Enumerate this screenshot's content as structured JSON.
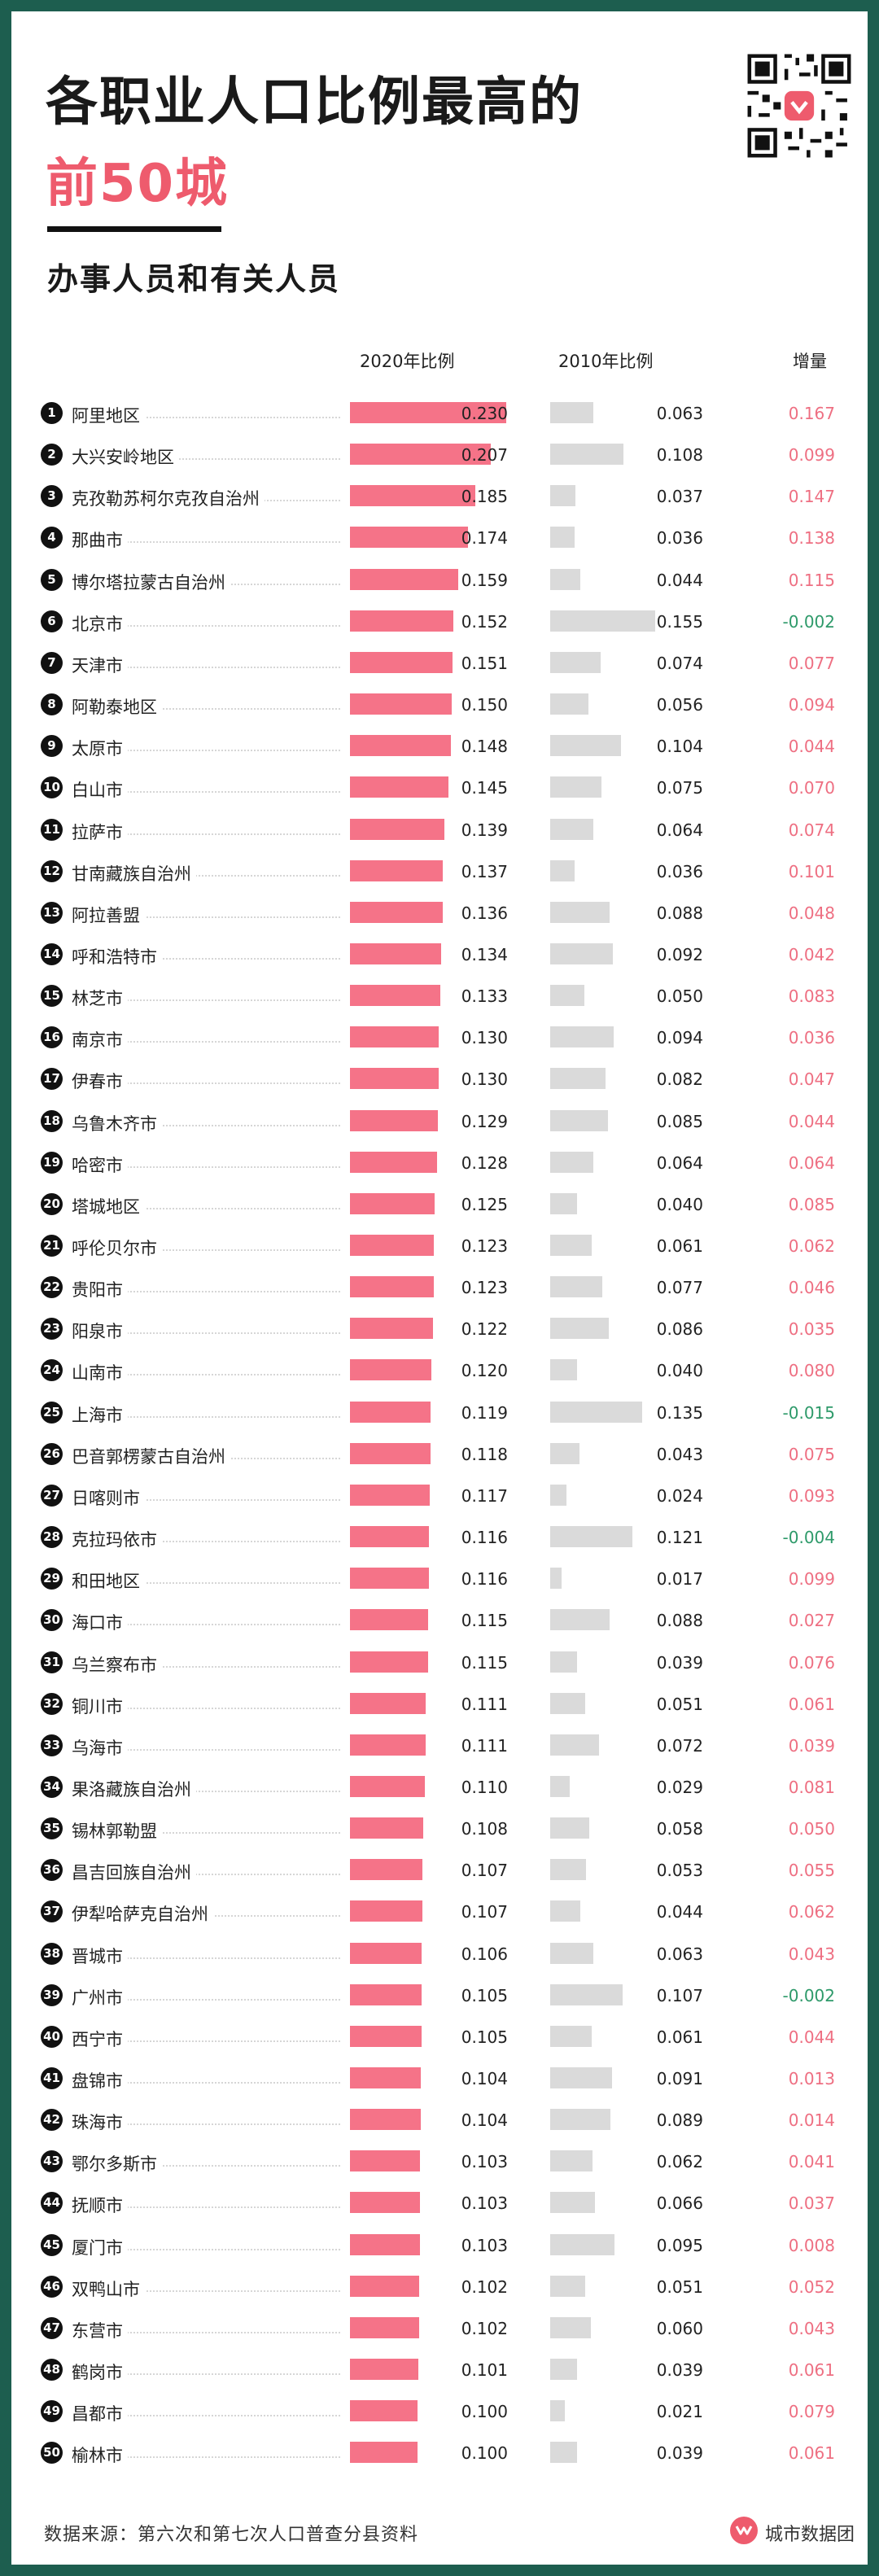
{
  "header": {
    "title_line1": "各职业人口比例最高的",
    "title_line2": "前50城",
    "subtitle": "办事人员和有关人员"
  },
  "columns": {
    "c2020": "2020年比例",
    "c2010": "2010年比例",
    "inc": "增量"
  },
  "footer": {
    "source": "数据来源：第六次和第七次人口普查分县资料",
    "brand": "城市数据团"
  },
  "colors": {
    "bar2020": "#f57388",
    "bar2010": "#dadada",
    "positive": "#ee6f82",
    "negative": "#2e9a6a",
    "accent": "#ee5b6d"
  },
  "icons": {
    "qr": "qr-code-icon",
    "brand": "brand-logo-icon"
  },
  "chart_data": {
    "type": "bar",
    "title": "各职业人口比例最高的 前50城",
    "subtitle": "办事人员和有关人员",
    "series": [
      {
        "name": "2020年比例",
        "values": [
          0.23,
          0.207,
          0.185,
          0.174,
          0.159,
          0.152,
          0.151,
          0.15,
          0.148,
          0.145,
          0.139,
          0.137,
          0.136,
          0.134,
          0.133,
          0.13,
          0.13,
          0.129,
          0.128,
          0.125,
          0.123,
          0.123,
          0.122,
          0.12,
          0.119,
          0.118,
          0.117,
          0.116,
          0.116,
          0.115,
          0.115,
          0.111,
          0.111,
          0.11,
          0.108,
          0.107,
          0.107,
          0.106,
          0.105,
          0.105,
          0.104,
          0.104,
          0.103,
          0.103,
          0.103,
          0.102,
          0.102,
          0.101,
          0.1,
          0.1
        ]
      },
      {
        "name": "2010年比例",
        "values": [
          0.063,
          0.108,
          0.037,
          0.036,
          0.044,
          0.155,
          0.074,
          0.056,
          0.104,
          0.075,
          0.064,
          0.036,
          0.088,
          0.092,
          0.05,
          0.094,
          0.082,
          0.085,
          0.064,
          0.04,
          0.061,
          0.077,
          0.086,
          0.04,
          0.135,
          0.043,
          0.024,
          0.121,
          0.017,
          0.088,
          0.039,
          0.051,
          0.072,
          0.029,
          0.058,
          0.053,
          0.044,
          0.063,
          0.107,
          0.061,
          0.091,
          0.089,
          0.062,
          0.066,
          0.095,
          0.051,
          0.06,
          0.039,
          0.021,
          0.039
        ]
      }
    ],
    "ranks": [
      "1",
      "2",
      "3",
      "4",
      "5",
      "6",
      "7",
      "8",
      "9",
      "10",
      "11",
      "12",
      "13",
      "14",
      "15",
      "16",
      "17",
      "18",
      "19",
      "20",
      "21",
      "22",
      "23",
      "24",
      "25",
      "26",
      "27",
      "28",
      "29",
      "30",
      "31",
      "32",
      "33",
      "34",
      "35",
      "36",
      "37",
      "38",
      "39",
      "40",
      "41",
      "42",
      "43",
      "44",
      "45",
      "46",
      "47",
      "48",
      "49",
      "50"
    ],
    "categories": [
      "阿里地区",
      "大兴安岭地区",
      "克孜勒苏柯尔克孜自治州",
      "那曲市",
      "博尔塔拉蒙古自治州",
      "北京市",
      "天津市",
      "阿勒泰地区",
      "太原市",
      "白山市",
      "拉萨市",
      "甘南藏族自治州",
      "阿拉善盟",
      "呼和浩特市",
      "林芝市",
      "南京市",
      "伊春市",
      "乌鲁木齐市",
      "哈密市",
      "塔城地区",
      "呼伦贝尔市",
      "贵阳市",
      "阳泉市",
      "山南市",
      "上海市",
      "巴音郭楞蒙古自治州",
      "日喀则市",
      "克拉玛依市",
      "和田地区",
      "海口市",
      "乌兰察布市",
      "铜川市",
      "乌海市",
      "果洛藏族自治州",
      "锡林郭勒盟",
      "昌吉回族自治州",
      "伊犁哈萨克自治州",
      "晋城市",
      "广州市",
      "西宁市",
      "盘锦市",
      "珠海市",
      "鄂尔多斯市",
      "抚顺市",
      "厦门市",
      "双鸭山市",
      "东营市",
      "鹤岗市",
      "昌都市",
      "榆林市"
    ],
    "labels2020": [
      "0.230",
      "0.207",
      "0.185",
      "0.174",
      "0.159",
      "0.152",
      "0.151",
      "0.150",
      "0.148",
      "0.145",
      "0.139",
      "0.137",
      "0.136",
      "0.134",
      "0.133",
      "0.130",
      "0.130",
      "0.129",
      "0.128",
      "0.125",
      "0.123",
      "0.123",
      "0.122",
      "0.120",
      "0.119",
      "0.118",
      "0.117",
      "0.116",
      "0.116",
      "0.115",
      "0.115",
      "0.111",
      "0.111",
      "0.110",
      "0.108",
      "0.107",
      "0.107",
      "0.106",
      "0.105",
      "0.105",
      "0.104",
      "0.104",
      "0.103",
      "0.103",
      "0.103",
      "0.102",
      "0.102",
      "0.101",
      "0.100",
      "0.100"
    ],
    "labels2010": [
      "0.063",
      "0.108",
      "0.037",
      "0.036",
      "0.044",
      "0.155",
      "0.074",
      "0.056",
      "0.104",
      "0.075",
      "0.064",
      "0.036",
      "0.088",
      "0.092",
      "0.050",
      "0.094",
      "0.082",
      "0.085",
      "0.064",
      "0.040",
      "0.061",
      "0.077",
      "0.086",
      "0.040",
      "0.135",
      "0.043",
      "0.024",
      "0.121",
      "0.017",
      "0.088",
      "0.039",
      "0.051",
      "0.072",
      "0.029",
      "0.058",
      "0.053",
      "0.044",
      "0.063",
      "0.107",
      "0.061",
      "0.091",
      "0.089",
      "0.062",
      "0.066",
      "0.095",
      "0.051",
      "0.060",
      "0.039",
      "0.021",
      "0.039"
    ],
    "increase": [
      "0.167",
      "0.099",
      "0.147",
      "0.138",
      "0.115",
      "-0.002",
      "0.077",
      "0.094",
      "0.044",
      "0.070",
      "0.074",
      "0.101",
      "0.048",
      "0.042",
      "0.083",
      "0.036",
      "0.047",
      "0.044",
      "0.064",
      "0.085",
      "0.062",
      "0.046",
      "0.035",
      "0.080",
      "-0.015",
      "0.075",
      "0.093",
      "-0.004",
      "0.099",
      "0.027",
      "0.076",
      "0.061",
      "0.039",
      "0.081",
      "0.050",
      "0.055",
      "0.062",
      "0.043",
      "-0.002",
      "0.044",
      "0.013",
      "0.014",
      "0.041",
      "0.037",
      "0.008",
      "0.052",
      "0.043",
      "0.061",
      "0.079",
      "0.061"
    ],
    "xlim": [
      0,
      0.23
    ],
    "grid": false
  }
}
